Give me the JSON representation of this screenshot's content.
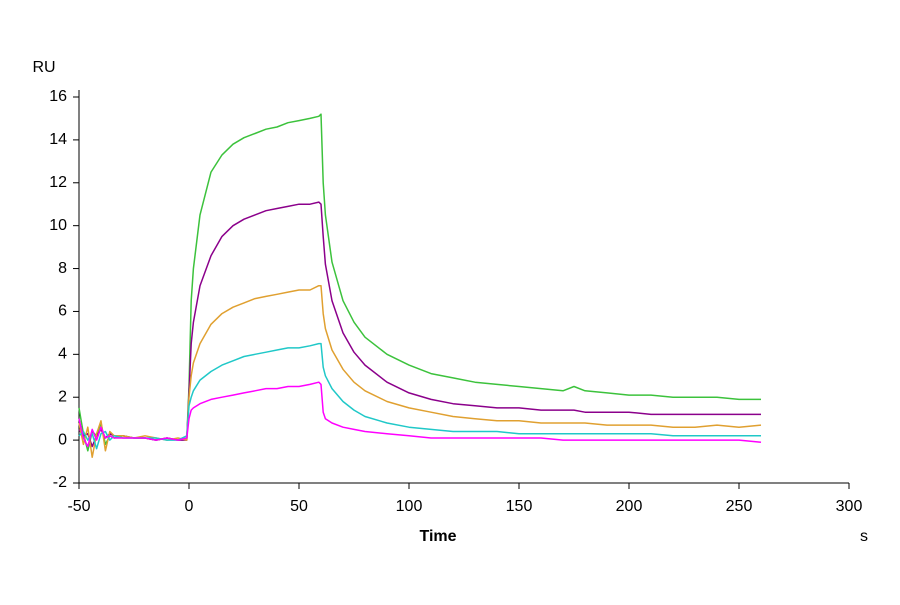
{
  "chart_data": {
    "type": "line",
    "y_label": "RU",
    "x_label": "Time",
    "x_unit": "s",
    "x": [
      -50,
      -48,
      -46,
      -44,
      -42,
      -40,
      -38,
      -36,
      -34,
      -30,
      -25,
      -20,
      -15,
      -10,
      -5,
      -1,
      0,
      1,
      2,
      5,
      10,
      15,
      20,
      25,
      30,
      35,
      40,
      45,
      50,
      55,
      59,
      60,
      61,
      62,
      65,
      70,
      75,
      80,
      90,
      100,
      110,
      120,
      130,
      140,
      150,
      160,
      170,
      175,
      180,
      190,
      200,
      210,
      220,
      230,
      240,
      250,
      260
    ],
    "series": [
      {
        "color": "#3cc23c",
        "values": [
          1.5,
          0.3,
          -0.5,
          0.4,
          0.2,
          0.8,
          -0.2,
          0.2,
          0.1,
          0.2,
          0.1,
          0.1,
          0,
          0.1,
          0,
          0.1,
          2.5,
          6.5,
          8,
          10.5,
          12.5,
          13.3,
          13.8,
          14.1,
          14.3,
          14.5,
          14.6,
          14.8,
          14.9,
          15,
          15.1,
          15.2,
          12,
          10.5,
          8.3,
          6.5,
          5.5,
          4.8,
          4,
          3.5,
          3.1,
          2.9,
          2.7,
          2.6,
          2.5,
          2.4,
          2.3,
          2.5,
          2.3,
          2.2,
          2.1,
          2.1,
          2,
          2,
          2,
          1.9,
          1.9
        ]
      },
      {
        "color": "#8b008b",
        "values": [
          0.5,
          0.2,
          0.3,
          -0.3,
          0.2,
          0.5,
          0.1,
          0.3,
          0.2,
          0.2,
          0.1,
          0.1,
          0,
          0.1,
          0,
          0,
          2.2,
          4.5,
          5.5,
          7.2,
          8.6,
          9.5,
          10,
          10.3,
          10.5,
          10.7,
          10.8,
          10.9,
          11,
          11,
          11.1,
          11,
          9.5,
          8.2,
          6.5,
          5,
          4.1,
          3.5,
          2.7,
          2.2,
          1.9,
          1.7,
          1.6,
          1.5,
          1.5,
          1.4,
          1.4,
          1.4,
          1.3,
          1.3,
          1.3,
          1.2,
          1.2,
          1.2,
          1.2,
          1.2,
          1.2
        ]
      },
      {
        "color": "#e0a030",
        "values": [
          0.8,
          -0.2,
          0.6,
          -0.8,
          0.3,
          0.9,
          -0.5,
          0.4,
          0.2,
          0.2,
          0.1,
          0.2,
          0.1,
          0,
          0.1,
          0,
          2,
          3,
          3.6,
          4.5,
          5.4,
          5.9,
          6.2,
          6.4,
          6.6,
          6.7,
          6.8,
          6.9,
          7,
          7,
          7.2,
          7.2,
          5.9,
          5.2,
          4.2,
          3.3,
          2.7,
          2.3,
          1.8,
          1.5,
          1.3,
          1.1,
          1,
          0.9,
          0.9,
          0.8,
          0.8,
          0.8,
          0.8,
          0.7,
          0.7,
          0.7,
          0.6,
          0.6,
          0.7,
          0.6,
          0.7
        ]
      },
      {
        "color": "#20c8c8",
        "values": [
          0.2,
          0.4,
          0,
          0.3,
          -0.4,
          0.3,
          0.4,
          0,
          0.2,
          0.1,
          0.1,
          0.1,
          0.1,
          0,
          0,
          0.2,
          1.6,
          2,
          2.3,
          2.8,
          3.2,
          3.5,
          3.7,
          3.9,
          4,
          4.1,
          4.2,
          4.3,
          4.3,
          4.4,
          4.5,
          4.5,
          3.4,
          3,
          2.4,
          1.8,
          1.4,
          1.1,
          0.8,
          0.6,
          0.5,
          0.4,
          0.4,
          0.4,
          0.3,
          0.3,
          0.3,
          0.3,
          0.3,
          0.3,
          0.3,
          0.3,
          0.2,
          0.2,
          0.2,
          0.2,
          0.2
        ]
      },
      {
        "color": "#ff00ff",
        "values": [
          1,
          0.1,
          -0.3,
          0.5,
          0,
          0.6,
          0.1,
          0.2,
          0.1,
          0.1,
          0.1,
          0.1,
          0,
          0.1,
          0,
          0.1,
          1,
          1.4,
          1.5,
          1.7,
          1.9,
          2,
          2.1,
          2.2,
          2.3,
          2.4,
          2.4,
          2.5,
          2.5,
          2.6,
          2.7,
          2.6,
          1.3,
          1,
          0.8,
          0.6,
          0.5,
          0.4,
          0.3,
          0.2,
          0.1,
          0.1,
          0.1,
          0.1,
          0.1,
          0.1,
          0,
          0,
          0,
          0,
          0,
          0,
          0,
          0,
          0,
          0,
          -0.1
        ]
      }
    ],
    "xlim": [
      -50,
      300
    ],
    "xticks": [
      -50,
      0,
      50,
      100,
      150,
      200,
      250,
      300
    ],
    "ylim": [
      -2,
      16
    ],
    "yticks": [
      -2,
      0,
      2,
      4,
      6,
      8,
      10,
      12,
      14,
      16
    ]
  }
}
